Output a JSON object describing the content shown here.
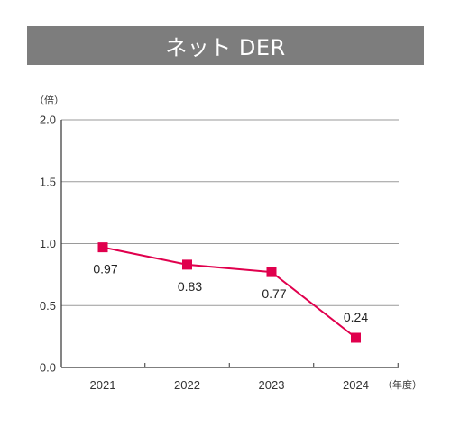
{
  "colors": {
    "title_bg": "#7d7d7d",
    "line": "#e0004d",
    "grid": "#9a9a9a",
    "axis": "#333333"
  },
  "chart_data": {
    "type": "line",
    "title": "ネット DER",
    "y_unit": "（倍）",
    "x_unit": "（年度）",
    "categories": [
      "2021",
      "2022",
      "2023",
      "2024"
    ],
    "values": [
      0.97,
      0.83,
      0.77,
      0.24
    ],
    "data_labels": [
      "0.97",
      "0.83",
      "0.77",
      "0.24"
    ],
    "label_position": [
      "below",
      "below",
      "below",
      "above"
    ],
    "ylim": [
      0,
      2.0
    ],
    "y_ticks": [
      0,
      0.5,
      1.0,
      1.5,
      2.0
    ],
    "y_tick_labels": [
      "0.0",
      "0.5",
      "1.0",
      "1.5",
      "2.0"
    ],
    "grid": true,
    "marker": "square"
  }
}
